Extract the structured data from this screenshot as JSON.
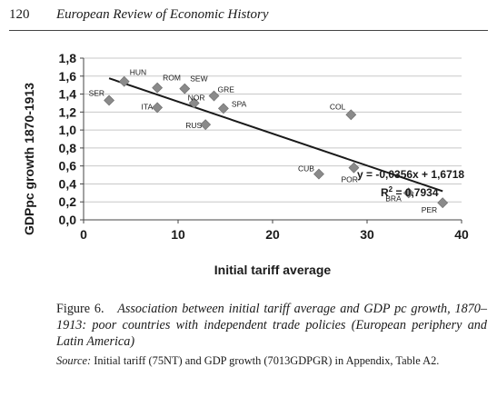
{
  "header": {
    "page_number": "120",
    "journal_title": "European Review of Economic History"
  },
  "caption": {
    "label": "Figure 6.",
    "text": "Association between initial tariff average and GDP pc growth, 1870–1913: poor countries with independent trade policies (European periphery and Latin America)"
  },
  "source": {
    "label": "Source:",
    "text": "Initial tariff (75NT) and GDP growth (7013GDPGR) in Appendix, Table A2."
  },
  "chart_data": {
    "type": "scatter",
    "xlabel": "Initial tariff average",
    "ylabel": "GDPpc growth 1870-1913",
    "xlim": [
      0,
      40
    ],
    "ylim": [
      0,
      1.8
    ],
    "x_ticks": [
      {
        "value": 0,
        "label": "0"
      },
      {
        "value": 10,
        "label": "10"
      },
      {
        "value": 20,
        "label": "20"
      },
      {
        "value": 30,
        "label": "30"
      },
      {
        "value": 40,
        "label": "40"
      }
    ],
    "y_ticks": [
      {
        "value": 0,
        "label": "0,0"
      },
      {
        "value": 0.2,
        "label": "0,2"
      },
      {
        "value": 0.4,
        "label": "0,4"
      },
      {
        "value": 0.6,
        "label": "0,6"
      },
      {
        "value": 0.8,
        "label": "0,8"
      },
      {
        "value": 1.0,
        "label": "1,0"
      },
      {
        "value": 1.2,
        "label": "1,2"
      },
      {
        "value": 1.4,
        "label": "1,4"
      },
      {
        "value": 1.6,
        "label": "1,6"
      },
      {
        "value": 1.8,
        "label": "1,8"
      }
    ],
    "grid": "horizontal",
    "marker_color": "#8a8a8a",
    "points": [
      {
        "label": "HUN",
        "x": 4.3,
        "y": 1.54
      },
      {
        "label": "SER",
        "x": 2.7,
        "y": 1.33
      },
      {
        "label": "ROM",
        "x": 7.8,
        "y": 1.47
      },
      {
        "label": "ITA",
        "x": 7.8,
        "y": 1.25
      },
      {
        "label": "SEW",
        "x": 10.7,
        "y": 1.46
      },
      {
        "label": "NOR",
        "x": 11.7,
        "y": 1.3
      },
      {
        "label": "GRE",
        "x": 13.8,
        "y": 1.38
      },
      {
        "label": "SPA",
        "x": 14.8,
        "y": 1.24
      },
      {
        "label": "RUS",
        "x": 12.9,
        "y": 1.06
      },
      {
        "label": "COL",
        "x": 28.3,
        "y": 1.17
      },
      {
        "label": "CUB",
        "x": 24.9,
        "y": 0.51
      },
      {
        "label": "POR",
        "x": 28.6,
        "y": 0.58
      },
      {
        "label": "BRA",
        "x": 34.4,
        "y": 0.3
      },
      {
        "label": "PER",
        "x": 38,
        "y": 0.19
      }
    ],
    "trendline": {
      "slope": -0.0356,
      "intercept": 1.6718,
      "x_range": [
        2.7,
        38
      ],
      "equation": "y = -0,0356x + 1,6718",
      "r2_label": "R",
      "r2_sup": "2",
      "r2_value": " = 0,7934"
    }
  }
}
